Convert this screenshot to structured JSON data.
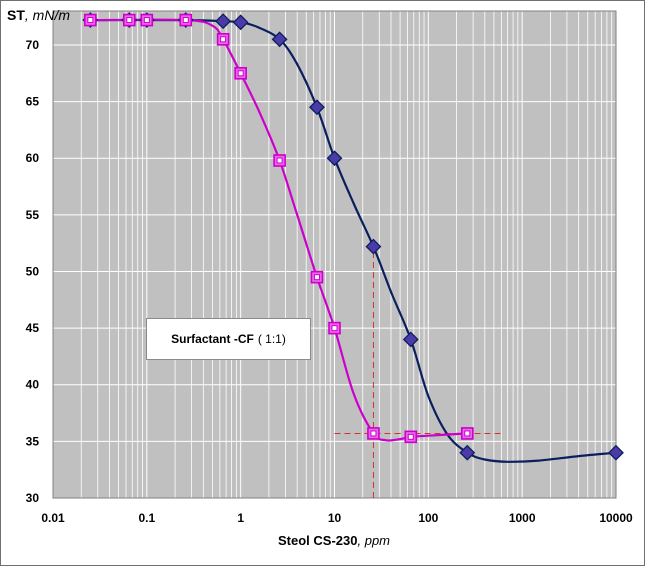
{
  "chart_data": {
    "type": "line",
    "x_scale": "log",
    "xlim": [
      0.01,
      10000
    ],
    "ylim": [
      30,
      73
    ],
    "grid": true,
    "background": "#c0c0c0",
    "ylabel_bold": "ST",
    "ylabel_italic": ", mN/m",
    "xlabel_bold": "Steol CS-230",
    "xlabel_italic": ", ppm",
    "x_ticks": [
      0.01,
      0.1,
      1,
      10,
      100,
      1000,
      10000
    ],
    "x_tick_labels": [
      "0.01",
      "0.1",
      "1",
      "10",
      "100",
      "1000",
      "10000"
    ],
    "y_ticks": [
      30,
      35,
      40,
      45,
      50,
      55,
      60,
      65,
      70
    ],
    "y_tick_labels": [
      "30",
      "35",
      "40",
      "45",
      "50",
      "55",
      "60",
      "65",
      "70"
    ],
    "annotation": {
      "bold": "Surfactant -CF",
      "normal": "( 1:1)"
    },
    "series": [
      {
        "name": "Steol CS-230",
        "marker": "diamond",
        "color": "#0b1f5e",
        "marker_fill": "#4b3aa8",
        "x": [
          0.025,
          0.065,
          0.1,
          0.26,
          0.65,
          1.0,
          2.6,
          6.5,
          10,
          26,
          65,
          260,
          10000
        ],
        "y": [
          72.2,
          72.2,
          72.2,
          72.2,
          72.1,
          72.0,
          70.5,
          64.5,
          60.0,
          52.2,
          44.0,
          34.0,
          34.0
        ],
        "curve_x": [
          0.025,
          0.26,
          0.65,
          1.0,
          1.5,
          2.6,
          4,
          6.5,
          10,
          16,
          26,
          40,
          65,
          100,
          160,
          260,
          400,
          700,
          1500,
          4000,
          10000
        ],
        "curve_y": [
          72.2,
          72.2,
          72.1,
          72.0,
          71.6,
          70.5,
          68.3,
          64.5,
          60.0,
          56.0,
          52.2,
          48.2,
          44.0,
          39.0,
          35.6,
          34.0,
          33.4,
          33.2,
          33.3,
          33.7,
          34.0
        ]
      },
      {
        "name": "Surfactant -CF ( 1:1)",
        "marker": "square",
        "color": "#cc00cc",
        "marker_fill": "#ee66ee",
        "x": [
          0.025,
          0.065,
          0.1,
          0.26,
          0.65,
          1.0,
          2.6,
          6.5,
          10,
          26,
          65,
          260
        ],
        "y": [
          72.2,
          72.2,
          72.2,
          72.2,
          70.5,
          67.5,
          59.8,
          49.5,
          45.0,
          35.7,
          35.4,
          35.7
        ],
        "curve_x": [
          0.025,
          0.26,
          0.5,
          0.65,
          1.0,
          1.6,
          2.6,
          4,
          6.5,
          10,
          16,
          26,
          35,
          50,
          65,
          100,
          260
        ],
        "curve_y": [
          72.2,
          72.2,
          71.7,
          70.5,
          67.5,
          64.0,
          59.8,
          55.0,
          49.5,
          45.0,
          39.2,
          35.7,
          35.1,
          35.2,
          35.4,
          35.5,
          35.7
        ]
      }
    ],
    "reference_lines": [
      {
        "type": "vertical",
        "x": 26,
        "y_from": 30,
        "y_to": 52.2,
        "color": "#cc3333"
      },
      {
        "type": "horizontal",
        "y": 35.7,
        "x_from": 10,
        "x_to": 600,
        "color": "#cc3333"
      }
    ]
  }
}
